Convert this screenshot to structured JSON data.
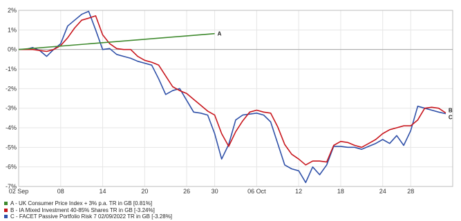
{
  "chart_data": {
    "type": "line",
    "title": "",
    "xlabel": "",
    "ylabel": "",
    "ylim": [
      -7,
      2
    ],
    "yticks": [
      2,
      1,
      0,
      -1,
      -2,
      -3,
      -4,
      -5,
      -6,
      -7
    ],
    "ytick_labels": [
      "2%",
      "1%",
      "0%",
      "-1%",
      "-2%",
      "-3%",
      "-4%",
      "-5%",
      "-6%",
      "-7%"
    ],
    "xtick_labels": [
      {
        "label": "02 Sep",
        "day": 0
      },
      {
        "label": "08",
        "day": 6
      },
      {
        "label": "14",
        "day": 12
      },
      {
        "label": "20",
        "day": 18
      },
      {
        "label": "26",
        "day": 24
      },
      {
        "label": "30",
        "day": 28
      },
      {
        "label": "06 Oct",
        "day": 34
      },
      {
        "label": "12",
        "day": 40
      },
      {
        "label": "18",
        "day": 46
      },
      {
        "label": "24",
        "day": 52
      },
      {
        "label": "28",
        "day": 56
      }
    ],
    "xlim": [
      0,
      62
    ],
    "grid": true,
    "legend_position": "bottom-left",
    "series": [
      {
        "id": "A",
        "end_label": "A",
        "name": "A - UK Consumer Price Index + 3% p.a. TR in GB [0.81%]",
        "color": "#3f8a2e",
        "points": [
          [
            0,
            0
          ],
          [
            28,
            0.81
          ]
        ]
      },
      {
        "id": "B",
        "end_label": "B",
        "name": "B - IA Mixed Investment 40-85% Shares TR in GB [-3.24%]",
        "color": "#c8161d",
        "points": [
          [
            0,
            0
          ],
          [
            1,
            0
          ],
          [
            2,
            0
          ],
          [
            3,
            -0.05
          ],
          [
            4,
            -0.1
          ],
          [
            5,
            0
          ],
          [
            6,
            0.2
          ],
          [
            7,
            0.6
          ],
          [
            8,
            1.1
          ],
          [
            9,
            1.5
          ],
          [
            10,
            1.6
          ],
          [
            11,
            1.72
          ],
          [
            12,
            0.75
          ],
          [
            13,
            0.3
          ],
          [
            14,
            0.05
          ],
          [
            15,
            0
          ],
          [
            16,
            0
          ],
          [
            17,
            -0.35
          ],
          [
            18,
            -0.55
          ],
          [
            19,
            -0.65
          ],
          [
            20,
            -0.8
          ],
          [
            21,
            -1.35
          ],
          [
            22,
            -1.9
          ],
          [
            23,
            -2.1
          ],
          [
            24,
            -2.25
          ],
          [
            25,
            -2.55
          ],
          [
            26,
            -2.85
          ],
          [
            27,
            -3.15
          ],
          [
            28,
            -3.35
          ],
          [
            29,
            -4.3
          ],
          [
            30,
            -4.95
          ],
          [
            31,
            -4.2
          ],
          [
            32,
            -3.65
          ],
          [
            33,
            -3.2
          ],
          [
            34,
            -3.1
          ],
          [
            35,
            -3.2
          ],
          [
            36,
            -3.25
          ],
          [
            37,
            -3.95
          ],
          [
            38,
            -4.85
          ],
          [
            39,
            -5.35
          ],
          [
            40,
            -5.6
          ],
          [
            41,
            -5.9
          ],
          [
            42,
            -5.7
          ],
          [
            43,
            -5.7
          ],
          [
            44,
            -5.75
          ],
          [
            45,
            -4.9
          ],
          [
            46,
            -4.7
          ],
          [
            47,
            -4.75
          ],
          [
            48,
            -4.9
          ],
          [
            49,
            -5.0
          ],
          [
            50,
            -4.8
          ],
          [
            51,
            -4.6
          ],
          [
            52,
            -4.3
          ],
          [
            53,
            -4.1
          ],
          [
            54,
            -4.0
          ],
          [
            55,
            -3.9
          ],
          [
            56,
            -3.9
          ],
          [
            57,
            -3.6
          ],
          [
            58,
            -3.0
          ],
          [
            59,
            -2.95
          ],
          [
            60,
            -3.0
          ],
          [
            61,
            -3.24
          ]
        ]
      },
      {
        "id": "C",
        "end_label": "C",
        "name": "C - FACET Passive Portfolio Risk 7 02/09/2022 TR in GB [-3.28%]",
        "color": "#2f50a8",
        "points": [
          [
            0,
            0
          ],
          [
            1,
            0
          ],
          [
            2,
            0.1
          ],
          [
            3,
            -0.05
          ],
          [
            4,
            -0.35
          ],
          [
            5,
            0
          ],
          [
            6,
            0.3
          ],
          [
            7,
            1.2
          ],
          [
            8,
            1.5
          ],
          [
            9,
            1.8
          ],
          [
            10,
            1.95
          ],
          [
            11,
            1.0
          ],
          [
            12,
            0
          ],
          [
            13,
            0.05
          ],
          [
            14,
            -0.25
          ],
          [
            15,
            -0.35
          ],
          [
            16,
            -0.45
          ],
          [
            17,
            -0.6
          ],
          [
            18,
            -0.7
          ],
          [
            19,
            -0.8
          ],
          [
            20,
            -1.5
          ],
          [
            21,
            -2.3
          ],
          [
            22,
            -2.1
          ],
          [
            23,
            -2.0
          ],
          [
            24,
            -2.6
          ],
          [
            25,
            -3.2
          ],
          [
            26,
            -3.25
          ],
          [
            27,
            -3.35
          ],
          [
            28,
            -4.3
          ],
          [
            29,
            -5.6
          ],
          [
            30,
            -4.85
          ],
          [
            31,
            -3.6
          ],
          [
            32,
            -3.35
          ],
          [
            33,
            -3.3
          ],
          [
            34,
            -3.25
          ],
          [
            35,
            -3.35
          ],
          [
            36,
            -3.7
          ],
          [
            37,
            -4.8
          ],
          [
            38,
            -5.9
          ],
          [
            39,
            -6.1
          ],
          [
            40,
            -6.2
          ],
          [
            41,
            -6.8
          ],
          [
            42,
            -6.0
          ],
          [
            43,
            -6.4
          ],
          [
            44,
            -5.9
          ],
          [
            45,
            -4.95
          ],
          [
            46,
            -4.95
          ],
          [
            47,
            -5.0
          ],
          [
            48,
            -5.0
          ],
          [
            49,
            -5.1
          ],
          [
            50,
            -4.95
          ],
          [
            51,
            -4.8
          ],
          [
            52,
            -4.6
          ],
          [
            53,
            -4.8
          ],
          [
            54,
            -4.4
          ],
          [
            55,
            -4.9
          ],
          [
            56,
            -4.15
          ],
          [
            57,
            -2.9
          ],
          [
            58,
            -3.0
          ],
          [
            59,
            -3.1
          ],
          [
            60,
            -3.2
          ],
          [
            61,
            -3.28
          ]
        ]
      }
    ]
  }
}
